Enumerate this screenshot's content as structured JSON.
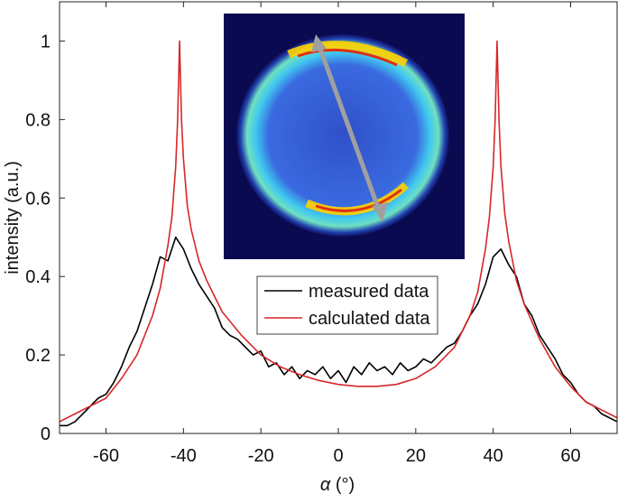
{
  "chart_data": {
    "type": "line",
    "xlabel_symbol": "α",
    "xlabel_unit": "(°)",
    "ylabel": "intensity (a.u.)",
    "xlim": [
      -72,
      72
    ],
    "ylim": [
      0,
      1.1
    ],
    "xticks": [
      -60,
      -40,
      -20,
      0,
      20,
      40,
      60
    ],
    "yticks": [
      0,
      0.2,
      0.4,
      0.6,
      0.8,
      1
    ],
    "legend": "center",
    "series": [
      {
        "name": "measured data",
        "color": "#000000",
        "x": [
          -72,
          -70,
          -68,
          -66,
          -64,
          -62,
          -60,
          -58,
          -56,
          -54,
          -52,
          -50,
          -48,
          -46,
          -44,
          -42,
          -40,
          -38,
          -36,
          -34,
          -32,
          -30,
          -28,
          -26,
          -24,
          -22,
          -20,
          -18,
          -16,
          -14,
          -12,
          -10,
          -8,
          -6,
          -4,
          -2,
          0,
          2,
          4,
          6,
          8,
          10,
          12,
          14,
          16,
          18,
          20,
          22,
          24,
          26,
          28,
          30,
          32,
          34,
          36,
          38,
          40,
          42,
          44,
          46,
          48,
          50,
          52,
          54,
          56,
          58,
          60,
          62,
          64,
          66,
          68,
          70,
          72
        ],
        "values": [
          0.02,
          0.02,
          0.03,
          0.05,
          0.07,
          0.09,
          0.1,
          0.13,
          0.17,
          0.22,
          0.26,
          0.32,
          0.38,
          0.45,
          0.44,
          0.5,
          0.47,
          0.42,
          0.38,
          0.35,
          0.32,
          0.27,
          0.25,
          0.24,
          0.22,
          0.2,
          0.21,
          0.17,
          0.18,
          0.15,
          0.17,
          0.14,
          0.16,
          0.15,
          0.17,
          0.14,
          0.16,
          0.13,
          0.17,
          0.15,
          0.18,
          0.16,
          0.17,
          0.15,
          0.18,
          0.16,
          0.17,
          0.19,
          0.18,
          0.2,
          0.22,
          0.23,
          0.26,
          0.3,
          0.33,
          0.38,
          0.45,
          0.47,
          0.43,
          0.4,
          0.33,
          0.3,
          0.25,
          0.22,
          0.19,
          0.15,
          0.13,
          0.1,
          0.08,
          0.07,
          0.05,
          0.04,
          0.03
        ]
      },
      {
        "name": "calculated data",
        "color": "#d62728",
        "x": [
          -72,
          -68,
          -64,
          -60,
          -56,
          -52,
          -48,
          -46,
          -44,
          -43,
          -42,
          -41.5,
          -41,
          -40.5,
          -40,
          -39,
          -38,
          -36,
          -34,
          -30,
          -25,
          -20,
          -15,
          -10,
          -5,
          0,
          5,
          10,
          15,
          20,
          25,
          30,
          34,
          36,
          38,
          39,
          40,
          40.5,
          41,
          41.5,
          42,
          43,
          44,
          46,
          48,
          52,
          56,
          60,
          64,
          68,
          72
        ],
        "values": [
          0.03,
          0.05,
          0.07,
          0.09,
          0.14,
          0.2,
          0.3,
          0.37,
          0.48,
          0.55,
          0.68,
          0.8,
          1,
          0.8,
          0.7,
          0.58,
          0.52,
          0.44,
          0.39,
          0.31,
          0.25,
          0.2,
          0.17,
          0.15,
          0.135,
          0.125,
          0.12,
          0.12,
          0.125,
          0.14,
          0.17,
          0.22,
          0.3,
          0.36,
          0.47,
          0.55,
          0.68,
          0.8,
          1,
          0.8,
          0.68,
          0.56,
          0.49,
          0.39,
          0.33,
          0.24,
          0.17,
          0.12,
          0.08,
          0.06,
          0.04
        ]
      }
    ]
  }
}
